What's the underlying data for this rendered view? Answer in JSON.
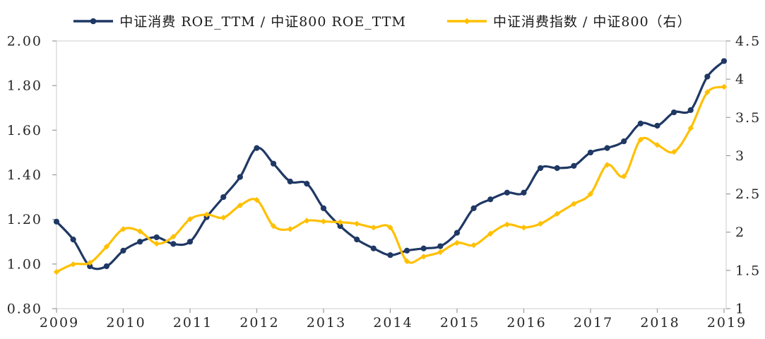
{
  "legend": {
    "series1": "中证消费 ROE_TTM / 中证800 ROE_TTM",
    "series2": "中证消费指数 / 中证800（右）"
  },
  "colors": {
    "series1": "#1f3864",
    "series2": "#ffc000",
    "plot_border": "#d4d4d4",
    "tick": "#9a9a9a",
    "label": "#262626",
    "background": "#ffffff"
  },
  "chart_data": {
    "type": "line",
    "title": "",
    "grid": false,
    "legend_position": "top",
    "x_axis": {
      "min": 2009,
      "max": 2019,
      "tick_labels": [
        "2009",
        "2010",
        "2011",
        "2012",
        "2013",
        "2014",
        "2015",
        "2016",
        "2017",
        "2018",
        "2019"
      ]
    },
    "left_axis": {
      "min": 0.8,
      "max": 2.0,
      "step": 0.2,
      "tick_labels": [
        "2.00",
        "1.80",
        "1.60",
        "1.40",
        "1.20",
        "1.00",
        "0.80"
      ]
    },
    "right_axis": {
      "min": 1,
      "max": 4.5,
      "step": 0.5,
      "tick_labels": [
        "4.5",
        "4",
        "3.5",
        "3",
        "2.5",
        "2",
        "1.5",
        "1"
      ]
    },
    "series": [
      {
        "name": "中证消费 ROE_TTM / 中证800 ROE_TTM",
        "axis": "left",
        "color": "#1f3864",
        "marker": "circle",
        "x": [
          2009,
          2009.25,
          2009.5,
          2009.75,
          2010,
          2010.25,
          2010.5,
          2010.75,
          2011,
          2011.25,
          2011.5,
          2011.75,
          2012,
          2012.25,
          2012.5,
          2012.75,
          2013,
          2013.25,
          2013.5,
          2013.75,
          2014,
          2014.25,
          2014.5,
          2014.75,
          2015,
          2015.25,
          2015.5,
          2015.75,
          2016,
          2016.25,
          2016.5,
          2016.75,
          2017,
          2017.25,
          2017.5,
          2017.75,
          2018,
          2018.25,
          2018.5,
          2018.75,
          2019
        ],
        "values": [
          1.19,
          1.11,
          0.99,
          0.99,
          1.06,
          1.1,
          1.12,
          1.09,
          1.1,
          1.21,
          1.3,
          1.39,
          1.52,
          1.45,
          1.37,
          1.36,
          1.25,
          1.17,
          1.11,
          1.07,
          1.04,
          1.06,
          1.07,
          1.08,
          1.14,
          1.25,
          1.29,
          1.32,
          1.32,
          1.43,
          1.43,
          1.44,
          1.5,
          1.52,
          1.55,
          1.63,
          1.62,
          1.68,
          1.69,
          1.84,
          1.91
        ]
      },
      {
        "name": "中证消费指数 / 中证800（右）",
        "axis": "right",
        "color": "#ffc000",
        "marker": "diamond",
        "x": [
          2009,
          2009.25,
          2009.5,
          2009.75,
          2010,
          2010.25,
          2010.5,
          2010.75,
          2011,
          2011.25,
          2011.5,
          2011.75,
          2012,
          2012.25,
          2012.5,
          2012.75,
          2013,
          2013.25,
          2013.5,
          2013.75,
          2014,
          2014.25,
          2014.5,
          2014.75,
          2015,
          2015.25,
          2015.5,
          2015.75,
          2016,
          2016.25,
          2016.5,
          2016.75,
          2017,
          2017.25,
          2017.5,
          2017.75,
          2018,
          2018.25,
          2018.5,
          2018.75,
          2019
        ],
        "values": [
          1.48,
          1.58,
          1.6,
          1.81,
          2.04,
          2.01,
          1.85,
          1.94,
          2.17,
          2.23,
          2.19,
          2.35,
          2.42,
          2.08,
          2.04,
          2.15,
          2.14,
          2.13,
          2.11,
          2.06,
          2.06,
          1.62,
          1.68,
          1.74,
          1.86,
          1.83,
          1.98,
          2.1,
          2.06,
          2.11,
          2.24,
          2.37,
          2.5,
          2.88,
          2.73,
          3.21,
          3.14,
          3.05,
          3.36,
          3.83,
          3.9
        ]
      }
    ]
  }
}
